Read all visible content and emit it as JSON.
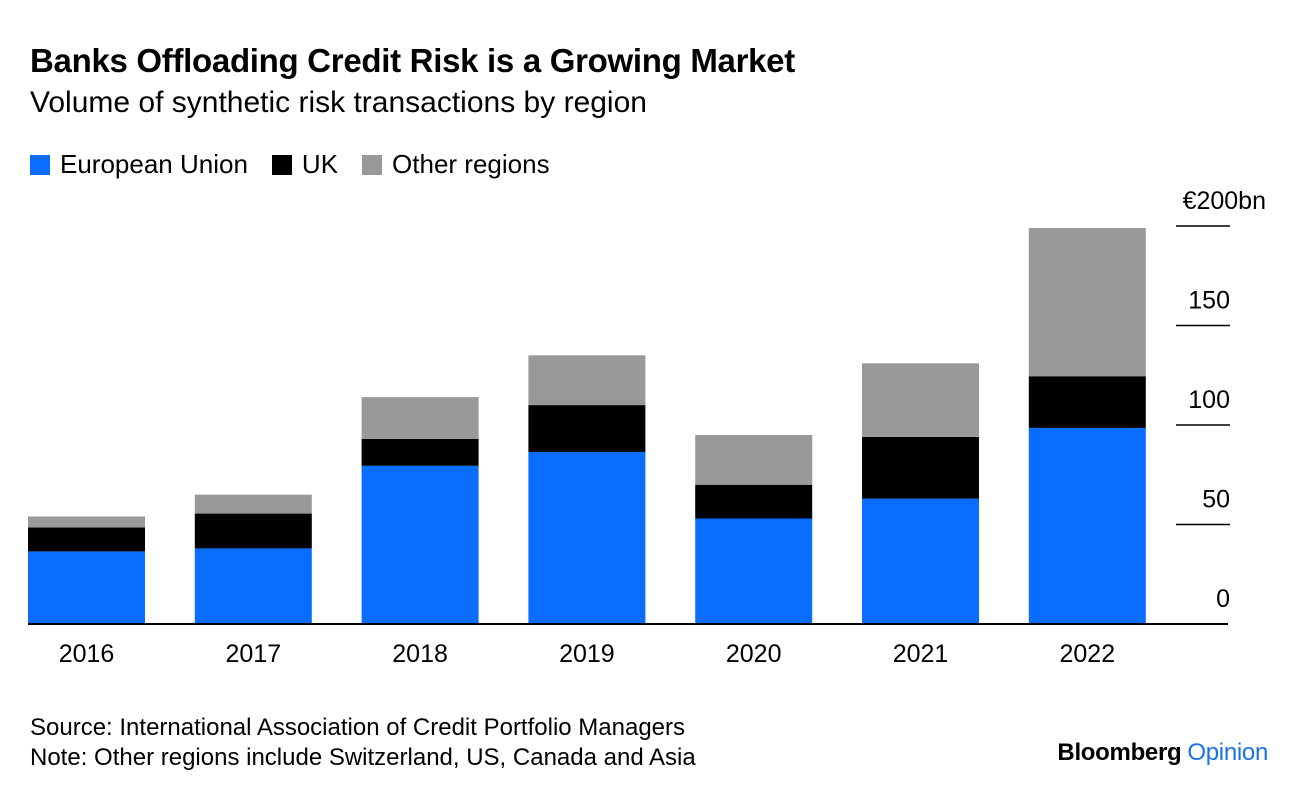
{
  "title": "Banks Offloading Credit Risk is a Growing Market",
  "subtitle": "Volume of synthetic risk transactions by region",
  "source": "Source: International Association of Credit Portfolio Managers",
  "note": "Note: Other regions include Switzerland, US, Canada and Asia",
  "brand": {
    "name": "Bloomberg",
    "section": "Opinion",
    "section_color": "#1a72e8"
  },
  "chart_data": {
    "type": "bar",
    "stacked": true,
    "categories": [
      "2016",
      "2017",
      "2018",
      "2019",
      "2020",
      "2021",
      "2022"
    ],
    "series": [
      {
        "name": "European Union",
        "color": "#0a6dff",
        "values": [
          36.5,
          38,
          79.5,
          86.5,
          53,
          63,
          98.5
        ]
      },
      {
        "name": "UK",
        "color": "#000000",
        "values": [
          12,
          17.5,
          13.5,
          23.5,
          17,
          31,
          26
        ]
      },
      {
        "name": "Other regions",
        "color": "#999999",
        "values": [
          5.5,
          9.5,
          21,
          25,
          25,
          37,
          74.5
        ]
      }
    ],
    "ylim": [
      0,
      200
    ],
    "yticks": [
      {
        "value": 0,
        "label": "0"
      },
      {
        "value": 50,
        "label": "50"
      },
      {
        "value": 100,
        "label": "100"
      },
      {
        "value": 150,
        "label": "150"
      },
      {
        "value": 200,
        "label": "€200bn"
      }
    ],
    "axis_position": "right",
    "grid": false,
    "legend_position": "top-left"
  }
}
